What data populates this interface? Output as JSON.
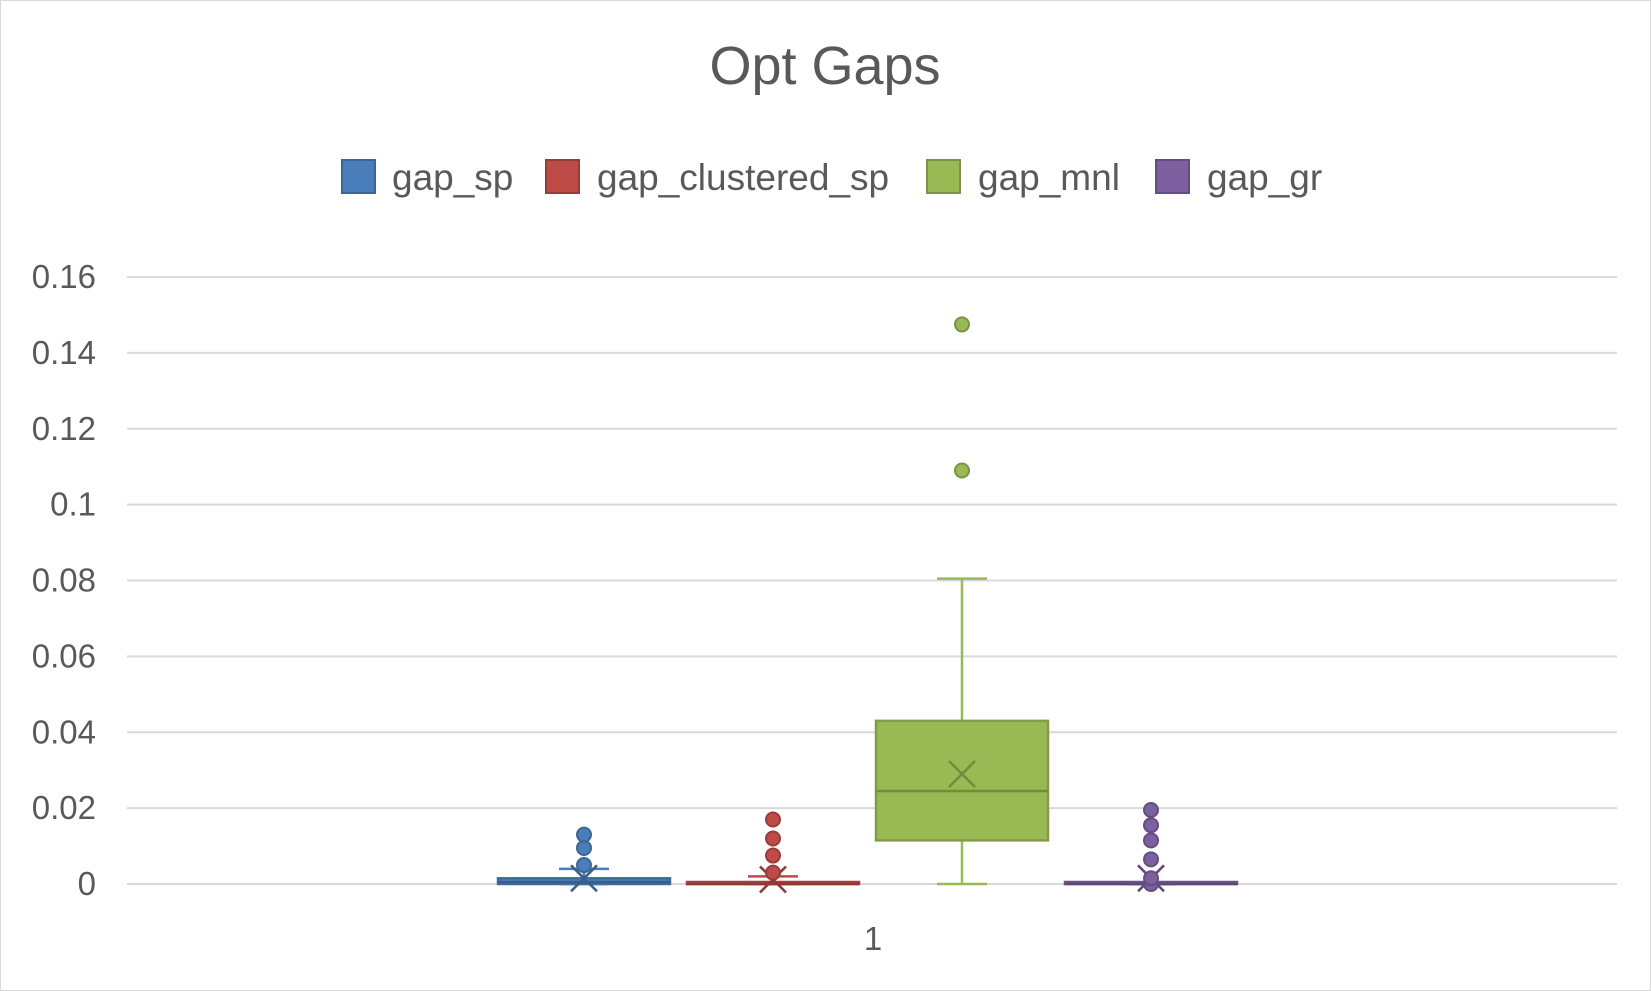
{
  "chart_data": {
    "type": "box",
    "title": "Opt Gaps",
    "xlabel": "",
    "ylabel": "",
    "categories": [
      "1"
    ],
    "ylim": [
      0,
      0.16
    ],
    "yticks": [
      0,
      0.02,
      0.04,
      0.06,
      0.08,
      0.1,
      0.12,
      0.14,
      0.16
    ],
    "ytick_labels": [
      "0",
      "0.02",
      "0.04",
      "0.06",
      "0.08",
      "0.1",
      "0.12",
      "0.14",
      "0.16"
    ],
    "grid": true,
    "legend_position": "top",
    "series": [
      {
        "name": "gap_sp",
        "color": "#4a7ebb",
        "min": 0,
        "q1": 0,
        "median": 0.0005,
        "q3": 0.0015,
        "max": 0.004,
        "mean": 0.0015,
        "outliers": [
          0.005,
          0.0095,
          0.013
        ]
      },
      {
        "name": "gap_clustered_sp",
        "color": "#be4b48",
        "min": 0,
        "q1": 0,
        "median": 0,
        "q3": 0.0005,
        "max": 0.002,
        "mean": 0.0012,
        "outliers": [
          0.003,
          0.0075,
          0.012,
          0.017
        ]
      },
      {
        "name": "gap_mnl",
        "color": "#98b954",
        "min": 0,
        "q1": 0.0115,
        "median": 0.0245,
        "q3": 0.043,
        "max": 0.0805,
        "mean": 0.029,
        "outliers": [
          0.109,
          0.1475
        ]
      },
      {
        "name": "gap_gr",
        "color": "#7d60a0",
        "min": 0,
        "q1": 0,
        "median": 0,
        "q3": 0,
        "max": 0,
        "mean": 0.0015,
        "outliers": [
          0,
          0.0015,
          0.0065,
          0.0115,
          0.0155,
          0.0195
        ]
      }
    ]
  }
}
